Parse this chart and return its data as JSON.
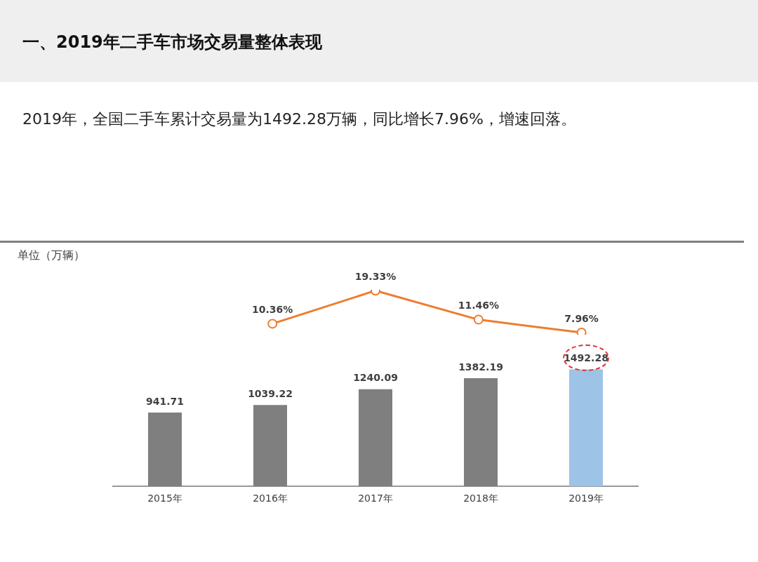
{
  "chart_data": [
    {
      "type": "line",
      "title": "一、2019年二手车市场交易量整体表现",
      "subtitle": "2019年，全国二手车累计交易量为1492.28万辆，同比增长7.96%，增速回落。",
      "categories": [
        null,
        null,
        null,
        null,
        null
      ],
      "color": "#ed7d31",
      "marker": "circle",
      "values": [
        null,
        10.36,
        19.33,
        11.46,
        7.96
      ],
      "value_labels": [
        null,
        "10.36%",
        "19.33%",
        "11.46%",
        "7.96%"
      ],
      "tick_labels": false,
      "legend": false,
      "grid": false
    },
    {
      "type": "bar",
      "annotations": [
        "单位（万辆）"
      ],
      "categories": [
        "2015年",
        "2016年",
        "2017年",
        "2018年",
        "2019年"
      ],
      "colors": [
        "#7f7f7f",
        "#7f7f7f",
        "#7f7f7f",
        "#7f7f7f",
        "#9dc3e6"
      ],
      "values": [
        941.71,
        1039.22,
        1240.09,
        1382.19,
        1492.28
      ],
      "value_labels": [
        "941.71",
        "1039.22",
        "1240.09",
        "1382.19",
        "1492.28"
      ],
      "legend": false,
      "grid": false
    }
  ]
}
